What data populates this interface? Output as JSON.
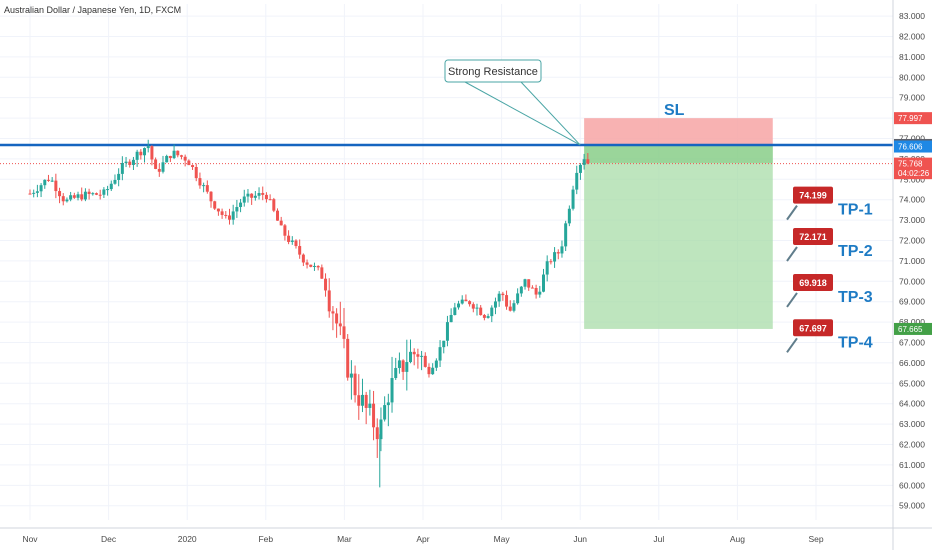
{
  "chart_data": {
    "type": "candlestick",
    "title": "Australian Dollar / Japanese Yen, 1D, FXCM",
    "y_axis": {
      "side": "right",
      "range": [
        58.3,
        83.3
      ],
      "ticks": [
        "83.000",
        "82.000",
        "81.000",
        "80.000",
        "79.000",
        "78.000",
        "77.000",
        "76.000",
        "75.000",
        "74.000",
        "73.000",
        "72.000",
        "71.000",
        "70.000",
        "69.000",
        "68.000",
        "67.000",
        "66.000",
        "65.000",
        "64.000",
        "63.000",
        "62.000",
        "61.000",
        "60.000",
        "59.000"
      ]
    },
    "x_axis": {
      "labels": [
        {
          "text": "Nov",
          "month_index": 0
        },
        {
          "text": "Dec",
          "month_index": 1
        },
        {
          "text": "2020",
          "month_index": 2
        },
        {
          "text": "Feb",
          "month_index": 3
        },
        {
          "text": "Mar",
          "month_index": 4
        },
        {
          "text": "Apr",
          "month_index": 5
        },
        {
          "text": "May",
          "month_index": 6
        },
        {
          "text": "Jun",
          "month_index": 7
        },
        {
          "text": "Jul",
          "month_index": 8
        },
        {
          "text": "Aug",
          "month_index": 9
        },
        {
          "text": "Sep",
          "month_index": 10
        }
      ]
    },
    "price_path_anchors": [
      {
        "t": 0.0,
        "p": 74.3
      },
      {
        "t": 0.25,
        "p": 75.1
      },
      {
        "t": 0.45,
        "p": 73.9
      },
      {
        "t": 0.65,
        "p": 74.2
      },
      {
        "t": 0.95,
        "p": 74.3
      },
      {
        "t": 1.15,
        "p": 75.5
      },
      {
        "t": 1.35,
        "p": 76.2
      },
      {
        "t": 1.5,
        "p": 76.7
      },
      {
        "t": 1.6,
        "p": 75.3
      },
      {
        "t": 1.8,
        "p": 76.3
      },
      {
        "t": 2.0,
        "p": 76.0
      },
      {
        "t": 2.3,
        "p": 74.0
      },
      {
        "t": 2.5,
        "p": 73.0
      },
      {
        "t": 2.7,
        "p": 74.0
      },
      {
        "t": 3.0,
        "p": 74.3
      },
      {
        "t": 3.2,
        "p": 72.5
      },
      {
        "t": 3.5,
        "p": 71.0
      },
      {
        "t": 3.7,
        "p": 70.4
      },
      {
        "t": 3.85,
        "p": 68.7
      },
      {
        "t": 4.1,
        "p": 65.0
      },
      {
        "t": 4.3,
        "p": 63.5
      },
      {
        "t": 4.45,
        "p": 62.6
      },
      {
        "t": 4.55,
        "p": 64.5
      },
      {
        "t": 4.8,
        "p": 66.3
      },
      {
        "t": 4.95,
        "p": 66.6
      },
      {
        "t": 5.05,
        "p": 65.5
      },
      {
        "t": 5.2,
        "p": 66.5
      },
      {
        "t": 5.4,
        "p": 68.8
      },
      {
        "t": 5.6,
        "p": 69.0
      },
      {
        "t": 5.8,
        "p": 68.3
      },
      {
        "t": 6.0,
        "p": 69.5
      },
      {
        "t": 6.1,
        "p": 68.5
      },
      {
        "t": 6.3,
        "p": 70.0
      },
      {
        "t": 6.45,
        "p": 69.3
      },
      {
        "t": 6.6,
        "p": 71.0
      },
      {
        "t": 6.75,
        "p": 71.5
      },
      {
        "t": 6.85,
        "p": 73.5
      },
      {
        "t": 6.95,
        "p": 75.5
      },
      {
        "t": 7.05,
        "p": 76.1
      },
      {
        "t": 7.1,
        "p": 75.8
      }
    ],
    "horizontal_lines": [
      {
        "name": "Resistance level",
        "value": 76.683,
        "color": "#1565c0"
      },
      {
        "name": "Current price",
        "value": 75.768,
        "color": "#ef5350"
      }
    ],
    "position": {
      "entry": 76.683,
      "stop_loss": 77.997,
      "target": 67.665,
      "start_month_index": 7.05,
      "end_month_index": 9.45,
      "stop_color": "#f7a5a5",
      "target_color": "#a8dca8"
    },
    "price_labels": [
      {
        "text": "77.997",
        "value": 77.997,
        "color": "#ef5350"
      },
      {
        "text": "76.683",
        "value": 76.683,
        "color": "#5d606b"
      },
      {
        "text": "76.606",
        "value": 76.606,
        "color": "#1e88e5"
      },
      {
        "text": "75.768",
        "value": 75.768,
        "color": "#ef5350"
      },
      {
        "text": "04:02:26",
        "value": 75.3,
        "color": "#ef5350"
      },
      {
        "text": "67.665",
        "value": 67.665,
        "color": "#43a047"
      }
    ],
    "targets": [
      {
        "label": "TP-1",
        "value_text": "74.199",
        "value": 74.199
      },
      {
        "label": "TP-2",
        "value_text": "72.171",
        "value": 72.171
      },
      {
        "label": "TP-3",
        "value_text": "69.918",
        "value": 69.918
      },
      {
        "label": "TP-4",
        "value_text": "67.697",
        "value": 67.697
      }
    ],
    "stop_loss_label": "SL",
    "annotations": [
      {
        "text": "Strong Resistance",
        "points_to_value": 76.683,
        "points_to_month_index": 7.05
      }
    ],
    "colors": {
      "up": "#26a69a",
      "down": "#ef5350",
      "tag": "#c62828",
      "text_accent": "#1e7bc4",
      "grid": "#f0f3fa"
    }
  }
}
